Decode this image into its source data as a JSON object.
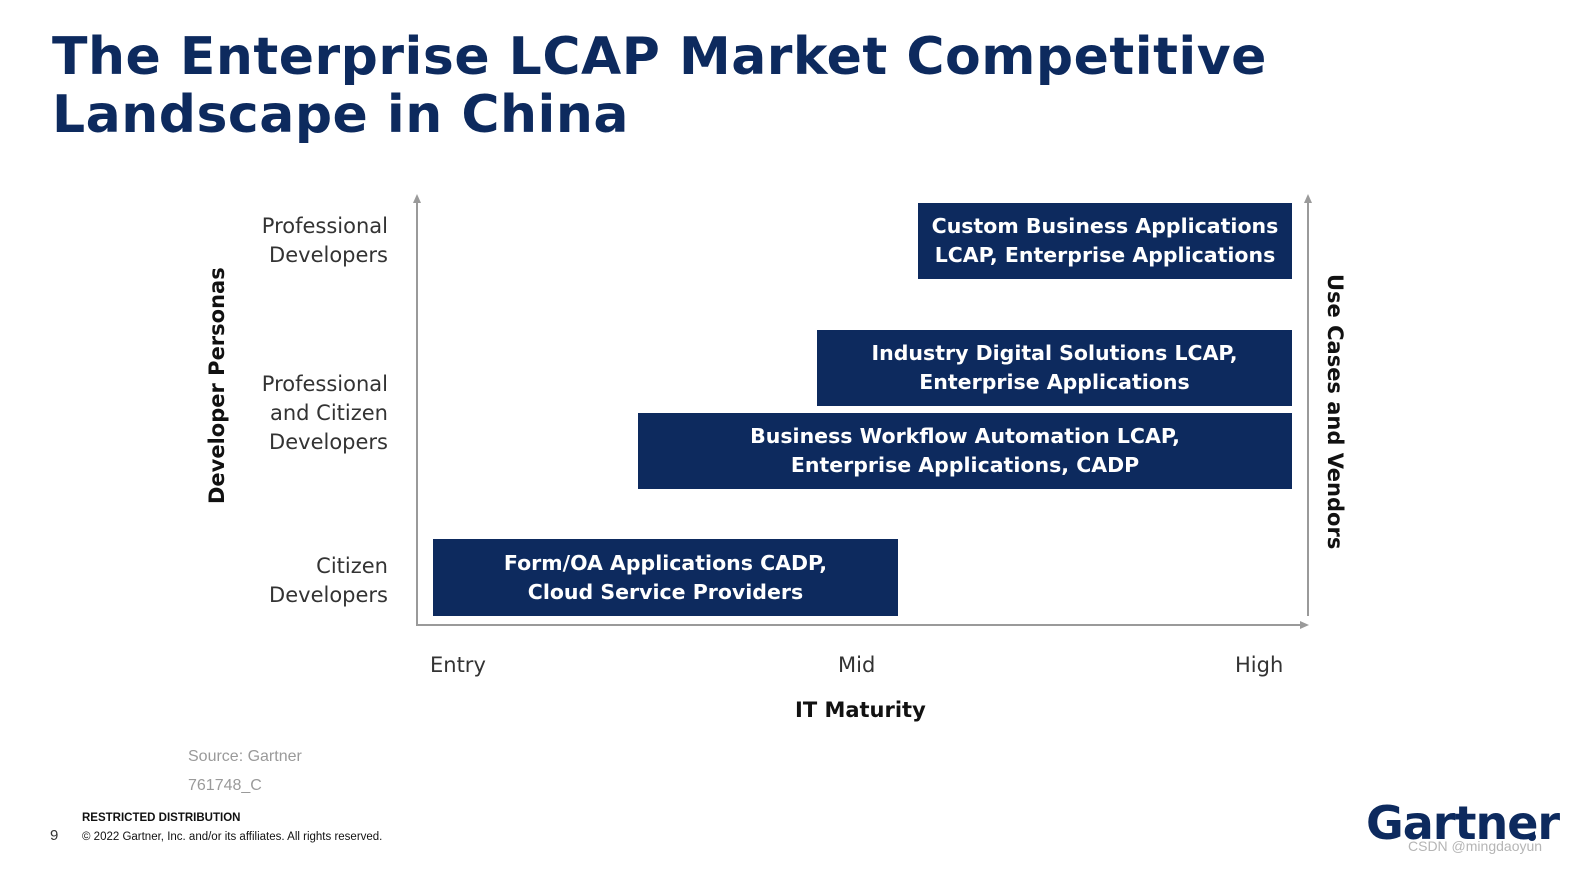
{
  "title": {
    "line1": "The Enterprise LCAP Market Competitive",
    "line2": "Landscape in China"
  },
  "diagram": {
    "y_axis_title": "Developer Personas",
    "right_axis_title": "Use Cases and Vendors",
    "x_axis_title": "IT Maturity",
    "y_levels": [
      {
        "line1": "Professional",
        "line2": "Developers",
        "line3": ""
      },
      {
        "line1": "Professional",
        "line2": "and Citizen",
        "line3": "Developers"
      },
      {
        "line1": "Citizen",
        "line2": "Developers",
        "line3": ""
      }
    ],
    "x_levels": [
      "Entry",
      "Mid",
      "High"
    ],
    "boxes": [
      {
        "line1": "Custom Business Applications",
        "line2": "LCAP, Enterprise Applications"
      },
      {
        "line1": "Industry Digital Solutions LCAP,",
        "line2": "Enterprise Applications"
      },
      {
        "line1": "Business Workflow Automation LCAP,",
        "line2": "Enterprise Applications, CADP"
      },
      {
        "line1": "Form/OA Applications CADP,",
        "line2": "Cloud Service Providers"
      }
    ],
    "box_color": "#0d2a5e"
  },
  "source": {
    "text": "Source: Gartner",
    "id": "761748_C"
  },
  "footer": {
    "page_number": "9",
    "restricted": "RESTRICTED DISTRIBUTION",
    "copyright": "© 2022 Gartner, Inc. and/or its affiliates. All rights reserved.",
    "logo": "Gartner",
    "watermark": "CSDN @mingdaoyun"
  },
  "colors": {
    "brand": "#0d2a5e",
    "axis": "#9a9a9a"
  }
}
